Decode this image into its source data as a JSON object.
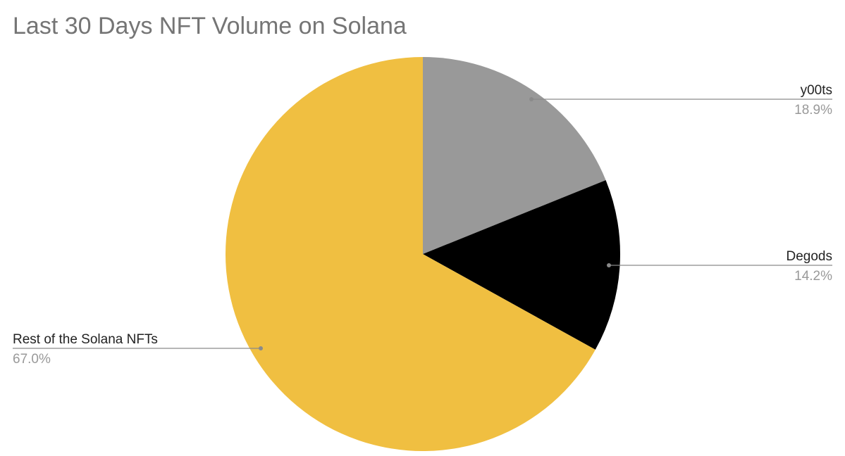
{
  "chart_data": {
    "type": "pie",
    "title": "Last 30 Days NFT Volume on Solana",
    "series": [
      {
        "name": "Slices",
        "values": [
          18.9,
          14.2,
          67.0
        ]
      }
    ],
    "slices": [
      {
        "label": "y00ts",
        "value": 18.9,
        "display": "18.9%",
        "color": "#999999"
      },
      {
        "label": "Degods",
        "value": 14.2,
        "display": "14.2%",
        "color": "#000000"
      },
      {
        "label": "Rest of the Solana NFTs",
        "value": 67.0,
        "display": "67.0%",
        "color": "#f0bf41"
      }
    ],
    "legend": "none",
    "label_color": "#222222",
    "value_color": "#999999",
    "leader_color": "#8a8a8a"
  }
}
